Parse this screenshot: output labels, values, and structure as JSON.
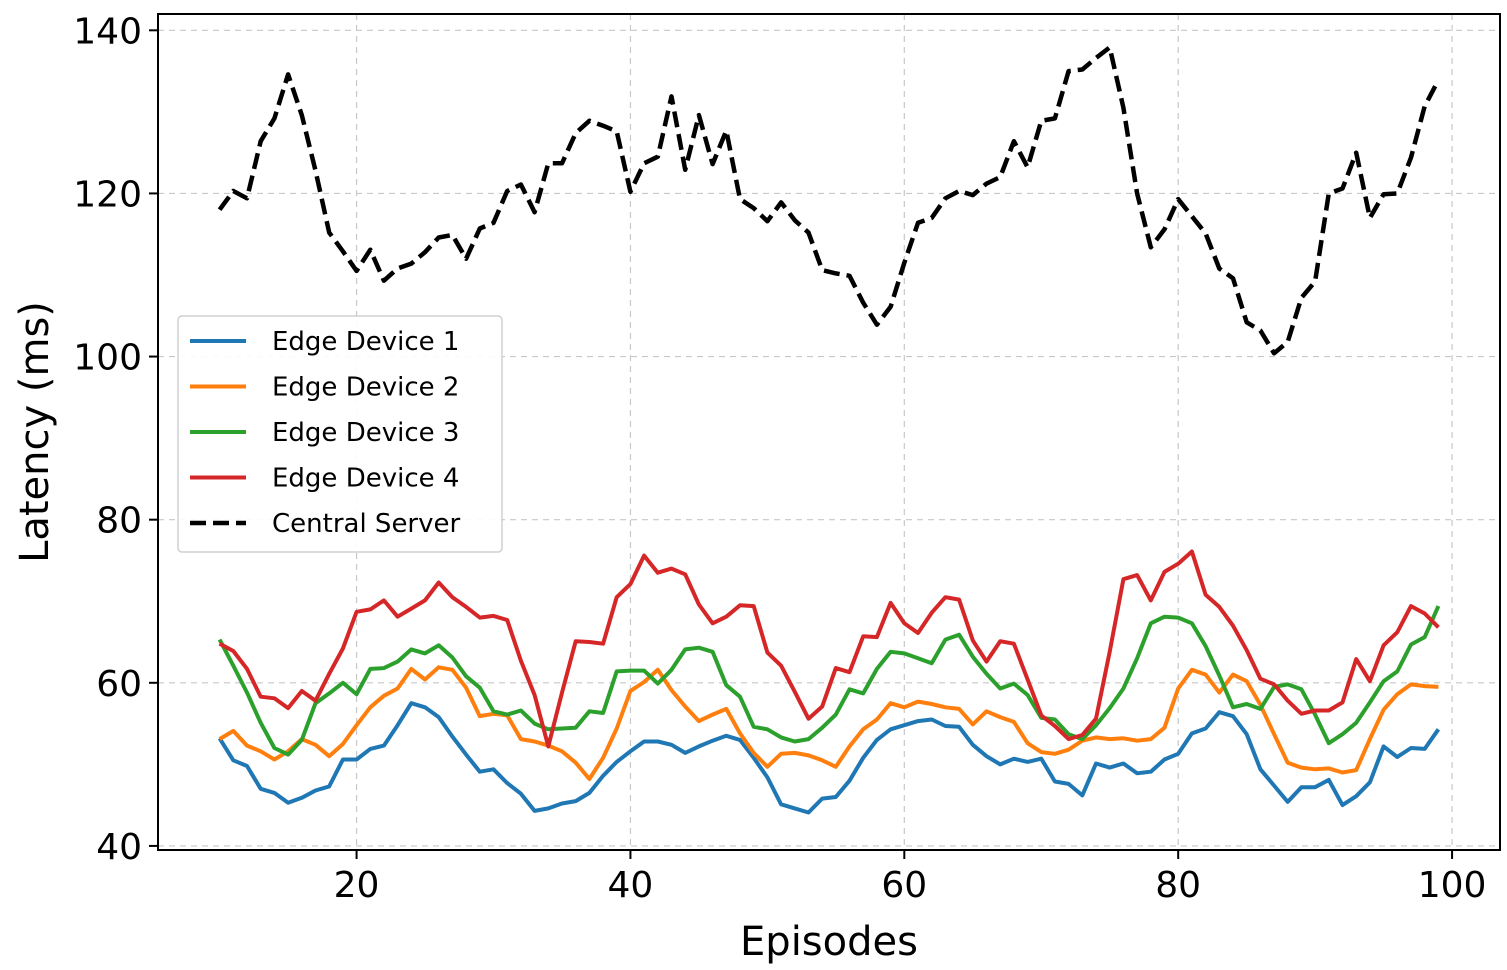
{
  "chart_data": {
    "type": "line",
    "title": "",
    "xlabel": "Episodes",
    "ylabel": "Latency (ms)",
    "xlim": [
      5.5,
      103.5
    ],
    "ylim": [
      39.5,
      142
    ],
    "xticks": [
      20,
      40,
      60,
      80,
      100
    ],
    "yticks": [
      40,
      60,
      80,
      100,
      120,
      140
    ],
    "grid": true,
    "legend_position": "center-left",
    "x": [
      10,
      11,
      12,
      13,
      14,
      15,
      16,
      17,
      18,
      19,
      20,
      21,
      22,
      23,
      24,
      25,
      26,
      27,
      28,
      29,
      30,
      31,
      32,
      33,
      34,
      35,
      36,
      37,
      38,
      39,
      40,
      41,
      42,
      43,
      44,
      45,
      46,
      47,
      48,
      49,
      50,
      51,
      52,
      53,
      54,
      55,
      56,
      57,
      58,
      59,
      60,
      61,
      62,
      63,
      64,
      65,
      66,
      67,
      68,
      69,
      70,
      71,
      72,
      73,
      74,
      75,
      76,
      77,
      78,
      79,
      80,
      81,
      82,
      83,
      84,
      85,
      86,
      87,
      88,
      89,
      90,
      91,
      92,
      93,
      94,
      95,
      96,
      97,
      98,
      99
    ],
    "series": [
      {
        "name": "Edge Device 1",
        "color": "#1f77b4",
        "style": "solid",
        "values": [
          53.2,
          50.5,
          49.8,
          47.0,
          46.5,
          45.3,
          45.9,
          46.8,
          47.3,
          50.6,
          50.6,
          51.9,
          52.3,
          54.8,
          57.5,
          57.0,
          55.8,
          53.4,
          51.2,
          49.1,
          49.4,
          47.7,
          46.4,
          44.3,
          44.6,
          45.2,
          45.5,
          46.5,
          48.6,
          50.3,
          51.6,
          52.8,
          52.8,
          52.4,
          51.4,
          52.2,
          52.9,
          53.5,
          53.0,
          50.8,
          48.4,
          45.1,
          44.6,
          44.1,
          45.8,
          46.0,
          48.0,
          50.8,
          53.0,
          54.3,
          54.8,
          55.3,
          55.5,
          54.7,
          54.6,
          52.4,
          51.0,
          50.0,
          50.7,
          50.3,
          50.7,
          47.9,
          47.6,
          46.2,
          50.1,
          49.6,
          50.1,
          48.9,
          49.1,
          50.6,
          51.3,
          53.8,
          54.4,
          56.4,
          55.9,
          53.7,
          49.4,
          47.4,
          45.4,
          47.2,
          47.2,
          48.1,
          45.0,
          46.1,
          47.8,
          52.2,
          50.9,
          52.0,
          51.9,
          54.3
        ]
      },
      {
        "name": "Edge Device 2",
        "color": "#ff7f0e",
        "style": "solid",
        "values": [
          53.1,
          54.1,
          52.3,
          51.6,
          50.6,
          51.6,
          53.1,
          52.4,
          51.0,
          52.5,
          54.8,
          57.0,
          58.4,
          59.3,
          61.7,
          60.4,
          61.9,
          61.6,
          59.4,
          55.9,
          56.2,
          56.0,
          53.1,
          52.8,
          52.3,
          51.6,
          50.2,
          48.2,
          50.8,
          54.4,
          59.0,
          60.1,
          61.6,
          59.1,
          57.1,
          55.3,
          56.1,
          56.8,
          53.8,
          51.4,
          49.7,
          51.3,
          51.4,
          51.1,
          50.5,
          49.7,
          52.2,
          54.3,
          55.5,
          57.5,
          57.0,
          57.7,
          57.4,
          57.0,
          56.8,
          54.9,
          56.5,
          55.8,
          55.2,
          52.6,
          51.5,
          51.3,
          51.8,
          52.9,
          53.3,
          53.1,
          53.2,
          52.9,
          53.1,
          54.5,
          59.3,
          61.6,
          61.0,
          58.8,
          61.0,
          60.2,
          57.3,
          53.7,
          50.2,
          49.6,
          49.4,
          49.5,
          49.0,
          49.3,
          53.1,
          56.7,
          58.6,
          59.8,
          59.6,
          59.5
        ]
      },
      {
        "name": "Edge Device 3",
        "color": "#2ca02c",
        "style": "solid",
        "values": [
          65.3,
          62.1,
          58.8,
          55.1,
          52.0,
          51.2,
          53.0,
          57.5,
          58.7,
          60.0,
          58.6,
          61.7,
          61.8,
          62.6,
          64.1,
          63.6,
          64.6,
          63.1,
          60.8,
          59.4,
          56.5,
          56.1,
          56.6,
          55.0,
          54.3,
          54.4,
          54.5,
          56.5,
          56.3,
          61.4,
          61.5,
          61.5,
          59.9,
          61.6,
          64.1,
          64.3,
          63.8,
          59.7,
          58.3,
          54.6,
          54.3,
          53.3,
          52.8,
          53.1,
          54.5,
          56.1,
          59.2,
          58.7,
          61.7,
          63.8,
          63.6,
          63.0,
          62.4,
          65.3,
          65.9,
          63.2,
          61.1,
          59.3,
          59.9,
          58.5,
          55.7,
          55.5,
          53.7,
          53.1,
          54.8,
          56.9,
          59.3,
          63.0,
          67.3,
          68.1,
          68.0,
          67.3,
          64.5,
          60.9,
          57.0,
          57.4,
          56.8,
          59.5,
          59.8,
          59.2,
          56.1,
          52.6,
          53.7,
          55.1,
          57.6,
          60.2,
          61.4,
          64.7,
          65.6,
          69.4
        ]
      },
      {
        "name": "Edge Device 4",
        "color": "#d62728",
        "style": "solid",
        "values": [
          64.8,
          63.9,
          61.7,
          58.3,
          58.1,
          56.9,
          59.0,
          57.8,
          61.1,
          64.2,
          68.7,
          69.0,
          70.1,
          68.1,
          69.1,
          70.1,
          72.3,
          70.5,
          69.3,
          68.0,
          68.2,
          67.7,
          62.7,
          58.5,
          52.2,
          58.8,
          65.1,
          65.0,
          64.8,
          70.5,
          72.1,
          75.6,
          73.5,
          74.0,
          73.3,
          69.6,
          67.3,
          68.1,
          69.5,
          69.4,
          63.7,
          62.1,
          58.9,
          55.6,
          57.1,
          61.8,
          61.3,
          65.7,
          65.6,
          69.8,
          67.3,
          66.1,
          68.6,
          70.5,
          70.2,
          65.2,
          62.6,
          65.1,
          64.8,
          60.4,
          56.0,
          54.7,
          53.1,
          53.6,
          55.6,
          63.8,
          72.7,
          73.2,
          70.1,
          73.6,
          74.6,
          76.1,
          70.8,
          69.3,
          67.0,
          64.0,
          60.5,
          59.8,
          57.8,
          56.2,
          56.6,
          56.6,
          57.6,
          62.9,
          60.2,
          64.6,
          66.2,
          69.4,
          68.5,
          66.8
        ]
      },
      {
        "name": "Central Server",
        "color": "#000000",
        "style": "dashed",
        "values": [
          118.0,
          120.3,
          119.4,
          126.4,
          129.2,
          134.6,
          129.6,
          122.8,
          115.2,
          112.9,
          110.5,
          113.1,
          109.3,
          110.8,
          111.4,
          112.8,
          114.6,
          114.9,
          112.0,
          115.7,
          116.4,
          120.3,
          121.1,
          117.7,
          123.7,
          123.7,
          127.4,
          128.9,
          128.3,
          127.6,
          120.2,
          123.7,
          124.5,
          131.9,
          122.9,
          129.6,
          123.6,
          127.7,
          119.3,
          118.2,
          116.6,
          118.9,
          116.7,
          115.2,
          110.6,
          110.2,
          109.9,
          106.6,
          103.9,
          106.1,
          111.5,
          116.4,
          117.0,
          119.4,
          120.3,
          119.8,
          121.2,
          122.0,
          126.4,
          123.2,
          128.9,
          129.2,
          135.0,
          135.2,
          136.6,
          137.9,
          130.5,
          120.0,
          113.4,
          115.6,
          119.3,
          117.2,
          115.1,
          110.8,
          109.6,
          104.2,
          103.2,
          100.4,
          101.8,
          107.2,
          109.2,
          120.0,
          120.6,
          125.0,
          117.0,
          119.9,
          120.0,
          124.4,
          130.7,
          133.9
        ]
      }
    ]
  }
}
